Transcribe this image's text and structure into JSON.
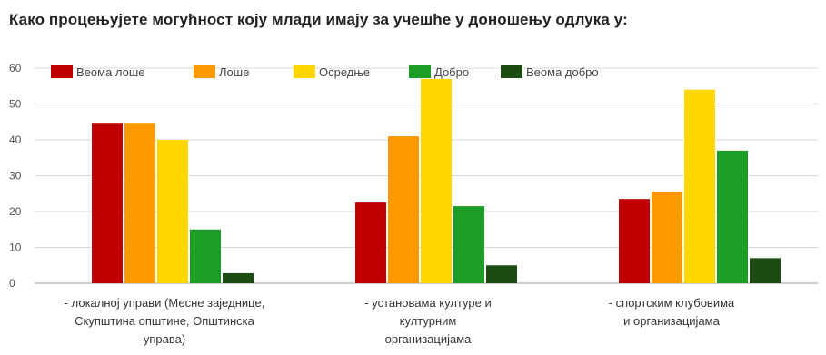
{
  "chart_data": {
    "type": "bar",
    "title": "Како процењујете могућност коју млади имају за учешће у доношењу одлука у:",
    "categories": [
      [
        "- локалној управи (Месне заједнице,",
        "Скупштина општине, Општинска",
        "управа)"
      ],
      [
        "- установама културе и",
        "културним",
        "организацијама"
      ],
      [
        "- спортским клубовима",
        "и организацијама"
      ]
    ],
    "series": [
      {
        "name": "Веома лоше",
        "color": "#c00000",
        "values": [
          44.5,
          22.5,
          23.5
        ]
      },
      {
        "name": "Лоше",
        "color": "#ff9900",
        "values": [
          44.5,
          41,
          25.5
        ]
      },
      {
        "name": "Осредње",
        "color": "#ffd700",
        "values": [
          40,
          57,
          54
        ]
      },
      {
        "name": "Добро",
        "color": "#1e9c28",
        "values": [
          15,
          21.5,
          37
        ]
      },
      {
        "name": "Веома добро",
        "color": "#1b4d12",
        "values": [
          2.8,
          5,
          7
        ]
      }
    ],
    "yticks": [
      0,
      10,
      20,
      30,
      40,
      50,
      60
    ],
    "ylim": [
      0,
      60
    ],
    "grid": true,
    "legend": "top"
  }
}
